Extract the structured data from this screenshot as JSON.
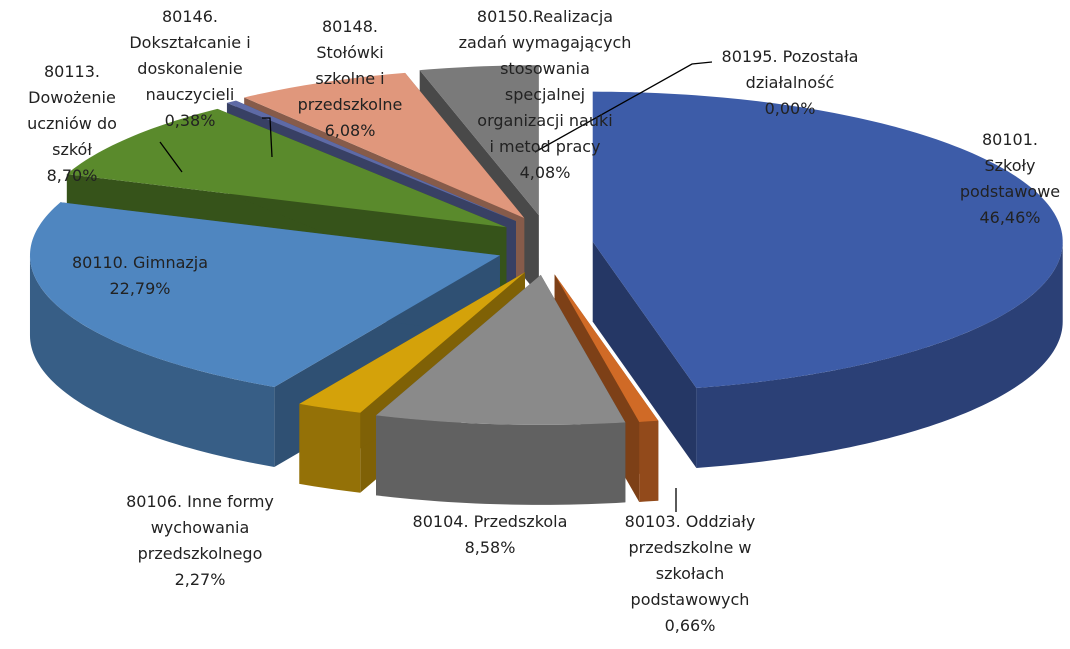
{
  "chart_data": {
    "type": "pie",
    "categories": [
      "80101. Szkoły podstawowe",
      "80103. Oddziały przedszkolne w szkołach podstawowych",
      "80104. Przedszkola",
      "80106. Inne formy wychowania przedszkolnego",
      "80110. Gimnazja",
      "80113. Dowożenie uczniów do szkół",
      "80146. Dokształcanie i doskonalenie nauczycieli",
      "80148. Stołówki szkolne i przedszkolne",
      "80150.Realizacja zadań wymagających stosowania specjalnej organizacji nauki i metod pracy",
      "80195. Pozostała działalność"
    ],
    "values": [
      46.46,
      0.66,
      8.58,
      2.27,
      22.79,
      8.7,
      0.38,
      6.08,
      4.08,
      0.0
    ],
    "value_labels": [
      "46,46%",
      "0,66%",
      "8,58%",
      "2,27%",
      "22,79%",
      "8,70%",
      "0,38%",
      "6,08%",
      "4,08%",
      "0,00%"
    ],
    "colors": [
      "#3d5ca8",
      "#d06a26",
      "#8a8a8a",
      "#d4a20a",
      "#4f86c0",
      "#5a8a2c",
      "#5e6aa6",
      "#e0977c",
      "#7a7a7a",
      "#9aa9d0"
    ]
  }
}
